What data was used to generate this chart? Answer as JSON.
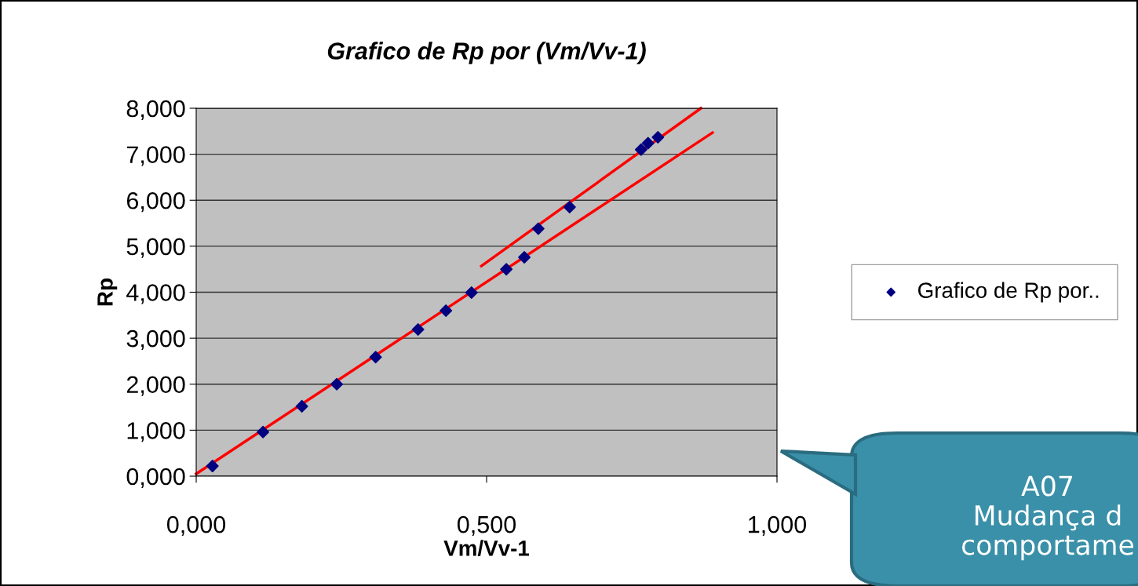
{
  "chart_data": {
    "type": "scatter",
    "title": "Grafico de Rp por (Vm/Vv-1)",
    "xlabel": "Vm/Vv-1",
    "ylabel": "Rp",
    "xlim": [
      0,
      1
    ],
    "xticks": [
      {
        "value": 0,
        "label": "0,000"
      },
      {
        "value": 0.5,
        "label": "0,500"
      },
      {
        "value": 1,
        "label": "1,000"
      }
    ],
    "ylim": [
      0,
      8
    ],
    "yticks": [
      {
        "value": 0,
        "label": "0,000"
      },
      {
        "value": 1,
        "label": "1,000"
      },
      {
        "value": 2,
        "label": "2,000"
      },
      {
        "value": 3,
        "label": "3,000"
      },
      {
        "value": 4,
        "label": "4,000"
      },
      {
        "value": 5,
        "label": "5,000"
      },
      {
        "value": 6,
        "label": "6,000"
      },
      {
        "value": 7,
        "label": "7,000"
      },
      {
        "value": 8,
        "label": "8,000"
      }
    ],
    "grid": "y",
    "legend": "right",
    "marker": "diamond",
    "series": [
      {
        "name": "Grafico de Rp por..",
        "color": "#000080",
        "x": [
          0.028,
          0.115,
          0.182,
          0.242,
          0.309,
          0.382,
          0.43,
          0.474,
          0.534,
          0.565,
          0.589,
          0.643,
          0.766,
          0.778,
          0.795
        ],
        "values": [
          0.22,
          0.96,
          1.52,
          2.0,
          2.59,
          3.19,
          3.6,
          3.99,
          4.5,
          4.76,
          5.38,
          5.85,
          7.1,
          7.24,
          7.37
        ]
      },
      {
        "type": "line",
        "marker": "none",
        "color": "#ff0000",
        "x": [
          0,
          0.889
        ],
        "values": [
          0.05,
          7.47
        ]
      },
      {
        "type": "line",
        "marker": "none",
        "color": "#ff0000",
        "x": [
          0.491,
          0.869
        ],
        "values": [
          4.57,
          8.0
        ]
      }
    ],
    "annotations": [
      "A07\nMudança d\ncomportame"
    ]
  }
}
